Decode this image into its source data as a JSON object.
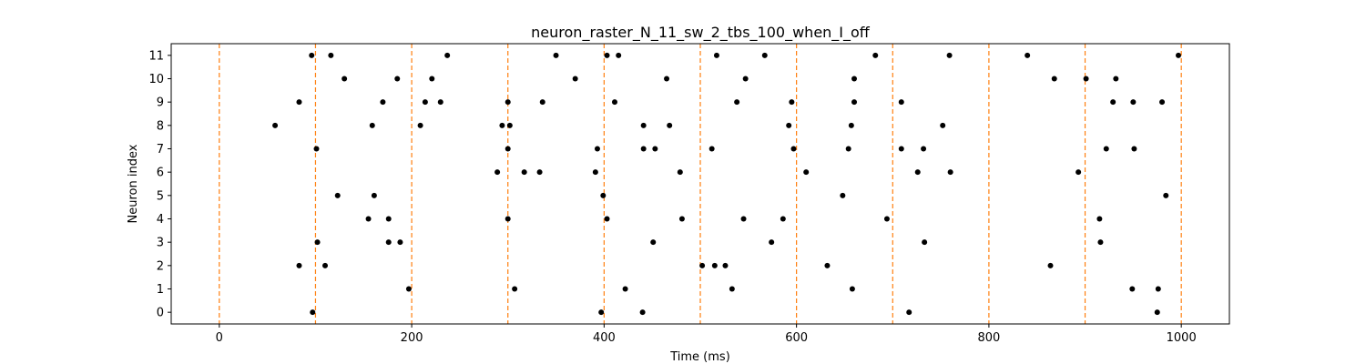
{
  "chart_data": {
    "type": "scatter",
    "title": "neuron_raster_N_11_sw_2_tbs_100_when_I_off",
    "xlabel": "Time (ms)",
    "ylabel": "Neuron index",
    "xlim": [
      -50,
      1050
    ],
    "ylim": [
      -0.5,
      11.5
    ],
    "x_ticks": [
      0,
      200,
      400,
      600,
      800,
      1000
    ],
    "y_ticks": [
      0,
      1,
      2,
      3,
      4,
      5,
      6,
      7,
      8,
      9,
      10,
      11
    ],
    "grid": false,
    "legend": "none",
    "marker_color": "#000000",
    "vline_color": "#ff7f0e",
    "vlines": [
      0,
      100,
      200,
      300,
      400,
      500,
      600,
      700,
      800,
      900,
      1000
    ],
    "series": [
      {
        "points": [
          {
            "x": 97,
            "y": 0
          },
          {
            "x": 397,
            "y": 0
          },
          {
            "x": 440,
            "y": 0
          },
          {
            "x": 717,
            "y": 0
          },
          {
            "x": 975,
            "y": 0
          },
          {
            "x": 197,
            "y": 1
          },
          {
            "x": 307,
            "y": 1
          },
          {
            "x": 422,
            "y": 1
          },
          {
            "x": 533,
            "y": 1
          },
          {
            "x": 658,
            "y": 1
          },
          {
            "x": 949,
            "y": 1
          },
          {
            "x": 976,
            "y": 1
          },
          {
            "x": 83,
            "y": 2
          },
          {
            "x": 110,
            "y": 2
          },
          {
            "x": 502,
            "y": 2
          },
          {
            "x": 515,
            "y": 2
          },
          {
            "x": 526,
            "y": 2
          },
          {
            "x": 632,
            "y": 2
          },
          {
            "x": 864,
            "y": 2
          },
          {
            "x": 102,
            "y": 3
          },
          {
            "x": 176,
            "y": 3
          },
          {
            "x": 188,
            "y": 3
          },
          {
            "x": 451,
            "y": 3
          },
          {
            "x": 574,
            "y": 3
          },
          {
            "x": 733,
            "y": 3
          },
          {
            "x": 916,
            "y": 3
          },
          {
            "x": 155,
            "y": 4
          },
          {
            "x": 176,
            "y": 4
          },
          {
            "x": 300,
            "y": 4
          },
          {
            "x": 403,
            "y": 4
          },
          {
            "x": 481,
            "y": 4
          },
          {
            "x": 545,
            "y": 4
          },
          {
            "x": 586,
            "y": 4
          },
          {
            "x": 694,
            "y": 4
          },
          {
            "x": 915,
            "y": 4
          },
          {
            "x": 123,
            "y": 5
          },
          {
            "x": 161,
            "y": 5
          },
          {
            "x": 399,
            "y": 5
          },
          {
            "x": 648,
            "y": 5
          },
          {
            "x": 984,
            "y": 5
          },
          {
            "x": 289,
            "y": 6
          },
          {
            "x": 317,
            "y": 6
          },
          {
            "x": 333,
            "y": 6
          },
          {
            "x": 391,
            "y": 6
          },
          {
            "x": 479,
            "y": 6
          },
          {
            "x": 610,
            "y": 6
          },
          {
            "x": 726,
            "y": 6
          },
          {
            "x": 760,
            "y": 6
          },
          {
            "x": 893,
            "y": 6
          },
          {
            "x": 101,
            "y": 7
          },
          {
            "x": 300,
            "y": 7
          },
          {
            "x": 393,
            "y": 7
          },
          {
            "x": 441,
            "y": 7
          },
          {
            "x": 453,
            "y": 7
          },
          {
            "x": 512,
            "y": 7
          },
          {
            "x": 597,
            "y": 7
          },
          {
            "x": 654,
            "y": 7
          },
          {
            "x": 709,
            "y": 7
          },
          {
            "x": 732,
            "y": 7
          },
          {
            "x": 922,
            "y": 7
          },
          {
            "x": 951,
            "y": 7
          },
          {
            "x": 58,
            "y": 8
          },
          {
            "x": 159,
            "y": 8
          },
          {
            "x": 209,
            "y": 8
          },
          {
            "x": 294,
            "y": 8
          },
          {
            "x": 302,
            "y": 8
          },
          {
            "x": 441,
            "y": 8
          },
          {
            "x": 468,
            "y": 8
          },
          {
            "x": 592,
            "y": 8
          },
          {
            "x": 657,
            "y": 8
          },
          {
            "x": 752,
            "y": 8
          },
          {
            "x": 83,
            "y": 9
          },
          {
            "x": 170,
            "y": 9
          },
          {
            "x": 214,
            "y": 9
          },
          {
            "x": 230,
            "y": 9
          },
          {
            "x": 300,
            "y": 9
          },
          {
            "x": 336,
            "y": 9
          },
          {
            "x": 411,
            "y": 9
          },
          {
            "x": 538,
            "y": 9
          },
          {
            "x": 595,
            "y": 9
          },
          {
            "x": 660,
            "y": 9
          },
          {
            "x": 709,
            "y": 9
          },
          {
            "x": 929,
            "y": 9
          },
          {
            "x": 950,
            "y": 9
          },
          {
            "x": 980,
            "y": 9
          },
          {
            "x": 130,
            "y": 10
          },
          {
            "x": 185,
            "y": 10
          },
          {
            "x": 221,
            "y": 10
          },
          {
            "x": 370,
            "y": 10
          },
          {
            "x": 465,
            "y": 10
          },
          {
            "x": 547,
            "y": 10
          },
          {
            "x": 660,
            "y": 10
          },
          {
            "x": 868,
            "y": 10
          },
          {
            "x": 901,
            "y": 10
          },
          {
            "x": 932,
            "y": 10
          },
          {
            "x": 96,
            "y": 11
          },
          {
            "x": 116,
            "y": 11
          },
          {
            "x": 237,
            "y": 11
          },
          {
            "x": 350,
            "y": 11
          },
          {
            "x": 403,
            "y": 11
          },
          {
            "x": 415,
            "y": 11
          },
          {
            "x": 517,
            "y": 11
          },
          {
            "x": 567,
            "y": 11
          },
          {
            "x": 682,
            "y": 11
          },
          {
            "x": 759,
            "y": 11
          },
          {
            "x": 840,
            "y": 11
          },
          {
            "x": 997,
            "y": 11
          }
        ]
      }
    ]
  }
}
